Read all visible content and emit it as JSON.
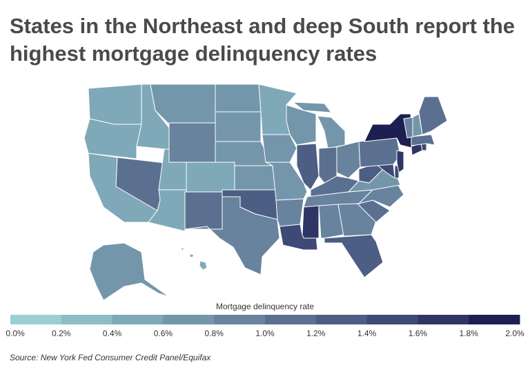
{
  "chart_data": {
    "type": "choropleth",
    "title": [
      "States in the Northeast and deep South report the",
      "highest mortgage delinquency rates"
    ],
    "values": [
      0.5,
      0.5,
      0.5,
      1.0,
      0.5,
      0.7,
      0.8,
      0.5,
      0.5,
      0.5,
      1.1,
      0.7,
      0.7,
      0.6,
      0.7,
      1.2,
      0.9,
      0.5,
      0.6,
      0.7,
      0.8,
      1.5,
      0.6,
      1.3,
      0.7,
      1.0,
      0.9,
      1.1,
      0.8,
      1.7,
      0.9,
      0.9,
      1.3,
      1.0,
      0.8,
      0.7,
      1.3,
      1.4,
      1.5,
      1.0,
      1.6,
      1.9,
      1.7,
      1.5,
      1.1,
      0.8,
      0.7,
      1.1,
      0.6,
      0.5
    ],
    "colorbar": {
      "title": "Mortgage delinquency rate",
      "clim": [
        0,
        2
      ],
      "colors": [
        "#9ccfd3",
        "#8dbcc6",
        "#7fa9b8",
        "#7396ab",
        "#68839e",
        "#5b7091",
        "#4d5e84",
        "#3e4a75",
        "#2f3664",
        "#1c1f4f"
      ],
      "ticks": [
        {
          "value": 0,
          "label": "0.0%"
        },
        {
          "value": 0.2,
          "label": "0.2%"
        },
        {
          "value": 0.4,
          "label": "0.4%"
        },
        {
          "value": 0.6,
          "label": "0.6%"
        },
        {
          "value": 0.8,
          "label": "0.8%"
        },
        {
          "value": 1.0,
          "label": "1.0%"
        },
        {
          "value": 1.2,
          "label": "1.2%"
        },
        {
          "value": 1.4,
          "label": "1.4%"
        },
        {
          "value": 1.6,
          "label": "1.6%"
        },
        {
          "value": 1.8,
          "label": "1.8%"
        },
        {
          "value": 2.0,
          "label": "2.0%"
        }
      ]
    },
    "source": "Source: New York Fed Consumer Credit Panel/Equifax"
  }
}
